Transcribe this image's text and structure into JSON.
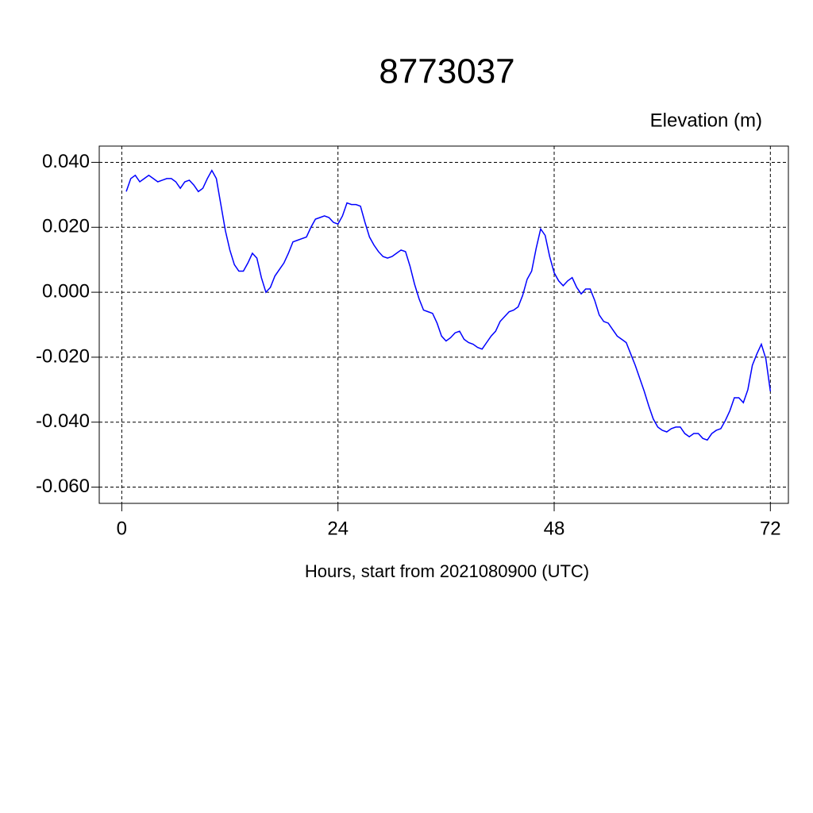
{
  "chart_data": {
    "type": "line",
    "title": "8773037",
    "subtitle": "Elevation (m)",
    "x_label": "Hours, start from 2021080900 (UTC)",
    "xlim": [
      -2.5,
      74
    ],
    "ylim": [
      -0.065,
      0.045
    ],
    "xticks": [
      0,
      24,
      48,
      72
    ],
    "yticks": [
      {
        "value": 0.04,
        "label": "0.040"
      },
      {
        "value": 0.02,
        "label": "0.020"
      },
      {
        "value": 0,
        "label": "0.000"
      },
      {
        "value": -0.02,
        "label": "-0.020"
      },
      {
        "value": -0.04,
        "label": "-0.040"
      },
      {
        "value": -0.06,
        "label": "-0.060"
      }
    ],
    "grid": true,
    "x": [
      0.5,
      1,
      1.5,
      2,
      2.5,
      3,
      3.5,
      4,
      4.5,
      5,
      5.5,
      6,
      6.5,
      7,
      7.5,
      8,
      8.5,
      9,
      9.5,
      10,
      10.5,
      11,
      11.5,
      12,
      12.5,
      13,
      13.5,
      14,
      14.5,
      15,
      15.5,
      16,
      16.5,
      17,
      17.5,
      18,
      18.5,
      19,
      19.5,
      20,
      20.5,
      21,
      21.5,
      22,
      22.5,
      23,
      23.5,
      24,
      24.5,
      25,
      25.5,
      26,
      26.5,
      27,
      27.5,
      28,
      28.5,
      29,
      29.5,
      30,
      30.5,
      31,
      31.5,
      32,
      32.5,
      33,
      33.5,
      34,
      34.5,
      35,
      35.5,
      36,
      36.5,
      37,
      37.5,
      38,
      38.5,
      39,
      39.5,
      40,
      40.5,
      41,
      41.5,
      42,
      42.5,
      43,
      43.5,
      44,
      44.5,
      45,
      45.5,
      46,
      46.5,
      47,
      47.5,
      48,
      48.5,
      49,
      49.5,
      50,
      50.5,
      51,
      51.5,
      52,
      52.5,
      53,
      53.5,
      54,
      54.5,
      55,
      55.5,
      56,
      56.5,
      57,
      57.5,
      58,
      58.5,
      59,
      59.5,
      60,
      60.5,
      61,
      61.5,
      62,
      62.5,
      63,
      63.5,
      64,
      64.5,
      65,
      65.5,
      66,
      66.5,
      67,
      67.5,
      68,
      68.5,
      69,
      69.5,
      70,
      70.5,
      71,
      71.5,
      72
    ],
    "series": [
      {
        "name": "Elevation",
        "color": "#0000ff",
        "values": [
          0.031,
          0.035,
          0.036,
          0.034,
          0.035,
          0.036,
          0.035,
          0.034,
          0.0345,
          0.035,
          0.035,
          0.034,
          0.032,
          0.034,
          0.0345,
          0.033,
          0.031,
          0.032,
          0.035,
          0.0375,
          0.035,
          0.027,
          0.019,
          0.013,
          0.0085,
          0.0065,
          0.0065,
          0.009,
          0.012,
          0.0105,
          0.0045,
          0.0,
          0.0015,
          0.005,
          0.007,
          0.009,
          0.012,
          0.0155,
          0.016,
          0.0165,
          0.017,
          0.02,
          0.0225,
          0.023,
          0.0235,
          0.023,
          0.0215,
          0.021,
          0.0235,
          0.0275,
          0.027,
          0.027,
          0.0265,
          0.0215,
          0.017,
          0.0145,
          0.0125,
          0.011,
          0.0105,
          0.011,
          0.012,
          0.013,
          0.0125,
          0.008,
          0.0025,
          -0.002,
          -0.0055,
          -0.006,
          -0.0065,
          -0.0095,
          -0.0135,
          -0.015,
          -0.014,
          -0.0125,
          -0.012,
          -0.0145,
          -0.0155,
          -0.016,
          -0.017,
          -0.0175,
          -0.0155,
          -0.0135,
          -0.012,
          -0.009,
          -0.0075,
          -0.006,
          -0.0055,
          -0.0045,
          -0.001,
          0.004,
          0.0065,
          0.0135,
          0.0195,
          0.0175,
          0.011,
          0.006,
          0.0035,
          0.002,
          0.0035,
          0.0045,
          0.0015,
          -0.0005,
          0.001,
          0.001,
          -0.0025,
          -0.007,
          -0.009,
          -0.0095,
          -0.0115,
          -0.0135,
          -0.0145,
          -0.0155,
          -0.019,
          -0.0225,
          -0.0265,
          -0.0305,
          -0.035,
          -0.039,
          -0.0415,
          -0.0425,
          -0.043,
          -0.042,
          -0.0415,
          -0.0415,
          -0.0435,
          -0.0445,
          -0.0435,
          -0.0435,
          -0.045,
          -0.0455,
          -0.0435,
          -0.0425,
          -0.042,
          -0.0395,
          -0.0365,
          -0.0325,
          -0.0325,
          -0.034,
          -0.03,
          -0.0225,
          -0.019,
          -0.016,
          -0.0205,
          -0.0305
        ]
      }
    ]
  }
}
